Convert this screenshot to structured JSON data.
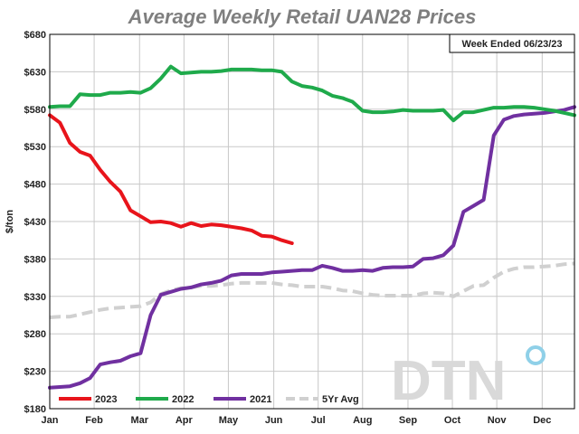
{
  "chart_data": {
    "type": "line",
    "title": "Average Weekly Retail UAN28 Prices",
    "xlabel": "",
    "ylabel": "$/ton",
    "ylim": [
      180,
      680
    ],
    "yticks": [
      180,
      230,
      280,
      330,
      380,
      430,
      480,
      530,
      580,
      630,
      680
    ],
    "ytick_labels": [
      "$180",
      "$230",
      "$280",
      "$330",
      "$380",
      "$430",
      "$480",
      "$530",
      "$580",
      "$630",
      "$680"
    ],
    "xlim": [
      0,
      52
    ],
    "xticks": [
      0,
      4.4,
      8.9,
      13.3,
      17.7,
      22.2,
      26.6,
      31,
      35.5,
      39.9,
      44.3,
      48.8
    ],
    "xtick_labels": [
      "Jan",
      "Feb",
      "Mar",
      "Apr",
      "May",
      "Jun",
      "Jul",
      "Aug",
      "Sep",
      "Oct",
      "Nov",
      "Dec"
    ],
    "grid": true,
    "annotation": "Week Ended 06/23/23",
    "logo": "DTN",
    "series": [
      {
        "name": "2023",
        "color": "#e8141b",
        "style": "solid",
        "points": [
          [
            0,
            572
          ],
          [
            1,
            562
          ],
          [
            2,
            535
          ],
          [
            3,
            523
          ],
          [
            4,
            518
          ],
          [
            5,
            499
          ],
          [
            6,
            483
          ],
          [
            7,
            470
          ],
          [
            8,
            445
          ],
          [
            9,
            437
          ],
          [
            10,
            429
          ],
          [
            11,
            430
          ],
          [
            12,
            428
          ],
          [
            13,
            423
          ],
          [
            14,
            428
          ],
          [
            15,
            424
          ],
          [
            16,
            426
          ],
          [
            17,
            425
          ],
          [
            18,
            423
          ],
          [
            19,
            421
          ],
          [
            20,
            418
          ],
          [
            21,
            411
          ],
          [
            22,
            410
          ],
          [
            23,
            405
          ],
          [
            24,
            401
          ]
        ]
      },
      {
        "name": "2022",
        "color": "#1faa4b",
        "style": "solid",
        "points": [
          [
            0,
            583
          ],
          [
            1,
            584
          ],
          [
            2,
            584
          ],
          [
            3,
            600
          ],
          [
            4,
            599
          ],
          [
            5,
            599
          ],
          [
            6,
            602
          ],
          [
            7,
            602
          ],
          [
            8,
            603
          ],
          [
            9,
            602
          ],
          [
            10,
            608
          ],
          [
            11,
            621
          ],
          [
            12,
            637
          ],
          [
            13,
            628
          ],
          [
            14,
            629
          ],
          [
            15,
            630
          ],
          [
            16,
            630
          ],
          [
            17,
            631
          ],
          [
            18,
            633
          ],
          [
            19,
            633
          ],
          [
            20,
            633
          ],
          [
            21,
            632
          ],
          [
            22,
            632
          ],
          [
            23,
            630
          ],
          [
            24,
            617
          ],
          [
            25,
            611
          ],
          [
            26,
            609
          ],
          [
            27,
            605
          ],
          [
            28,
            598
          ],
          [
            29,
            595
          ],
          [
            30,
            590
          ],
          [
            31,
            578
          ],
          [
            32,
            576
          ],
          [
            33,
            576
          ],
          [
            34,
            577
          ],
          [
            35,
            579
          ],
          [
            36,
            578
          ],
          [
            37,
            578
          ],
          [
            38,
            578
          ],
          [
            39,
            579
          ],
          [
            40,
            565
          ],
          [
            41,
            576
          ],
          [
            42,
            576
          ],
          [
            43,
            579
          ],
          [
            44,
            582
          ],
          [
            45,
            582
          ],
          [
            46,
            583
          ],
          [
            47,
            583
          ],
          [
            48,
            582
          ],
          [
            49,
            580
          ],
          [
            50,
            578
          ],
          [
            51,
            575
          ],
          [
            52,
            572
          ]
        ]
      },
      {
        "name": "2021",
        "color": "#7030a0",
        "style": "solid",
        "points": [
          [
            0,
            208
          ],
          [
            1,
            209
          ],
          [
            2,
            210
          ],
          [
            3,
            214
          ],
          [
            4,
            221
          ],
          [
            5,
            239
          ],
          [
            6,
            242
          ],
          [
            7,
            244
          ],
          [
            8,
            250
          ],
          [
            9,
            254
          ],
          [
            10,
            305
          ],
          [
            11,
            332
          ],
          [
            12,
            336
          ],
          [
            13,
            340
          ],
          [
            14,
            342
          ],
          [
            15,
            346
          ],
          [
            16,
            348
          ],
          [
            17,
            351
          ],
          [
            18,
            358
          ],
          [
            19,
            360
          ],
          [
            20,
            360
          ],
          [
            21,
            360
          ],
          [
            22,
            362
          ],
          [
            23,
            363
          ],
          [
            24,
            364
          ],
          [
            25,
            365
          ],
          [
            26,
            365
          ],
          [
            27,
            371
          ],
          [
            28,
            368
          ],
          [
            29,
            364
          ],
          [
            30,
            364
          ],
          [
            31,
            365
          ],
          [
            32,
            364
          ],
          [
            33,
            368
          ],
          [
            34,
            369
          ],
          [
            35,
            369
          ],
          [
            36,
            370
          ],
          [
            37,
            380
          ],
          [
            38,
            381
          ],
          [
            39,
            385
          ],
          [
            40,
            398
          ],
          [
            41,
            443
          ],
          [
            42,
            451
          ],
          [
            43,
            459
          ],
          [
            44,
            545
          ],
          [
            45,
            566
          ],
          [
            46,
            571
          ],
          [
            47,
            573
          ],
          [
            48,
            574
          ],
          [
            49,
            575
          ],
          [
            50,
            577
          ],
          [
            51,
            579
          ],
          [
            52,
            583
          ]
        ]
      },
      {
        "name": "5Yr Avg",
        "color": "#d0d0d0",
        "style": "dashed",
        "points": [
          [
            0,
            302
          ],
          [
            1,
            303
          ],
          [
            2,
            303
          ],
          [
            3,
            306
          ],
          [
            4,
            309
          ],
          [
            5,
            312
          ],
          [
            6,
            314
          ],
          [
            7,
            315
          ],
          [
            8,
            316
          ],
          [
            9,
            317
          ],
          [
            10,
            322
          ],
          [
            11,
            333
          ],
          [
            12,
            338
          ],
          [
            13,
            341
          ],
          [
            14,
            342
          ],
          [
            15,
            344
          ],
          [
            16,
            344
          ],
          [
            17,
            345
          ],
          [
            18,
            347
          ],
          [
            19,
            348
          ],
          [
            20,
            348
          ],
          [
            21,
            348
          ],
          [
            22,
            348
          ],
          [
            23,
            346
          ],
          [
            24,
            345
          ],
          [
            25,
            343
          ],
          [
            26,
            343
          ],
          [
            27,
            343
          ],
          [
            28,
            341
          ],
          [
            29,
            338
          ],
          [
            30,
            337
          ],
          [
            31,
            334
          ],
          [
            32,
            332
          ],
          [
            33,
            331
          ],
          [
            34,
            331
          ],
          [
            35,
            331
          ],
          [
            36,
            331
          ],
          [
            37,
            334
          ],
          [
            38,
            335
          ],
          [
            39,
            334
          ],
          [
            40,
            330
          ],
          [
            41,
            337
          ],
          [
            42,
            344
          ],
          [
            43,
            345
          ],
          [
            44,
            355
          ],
          [
            45,
            363
          ],
          [
            46,
            367
          ],
          [
            47,
            369
          ],
          [
            48,
            369
          ],
          [
            49,
            370
          ],
          [
            50,
            371
          ],
          [
            51,
            373
          ],
          [
            52,
            374
          ]
        ]
      }
    ]
  }
}
